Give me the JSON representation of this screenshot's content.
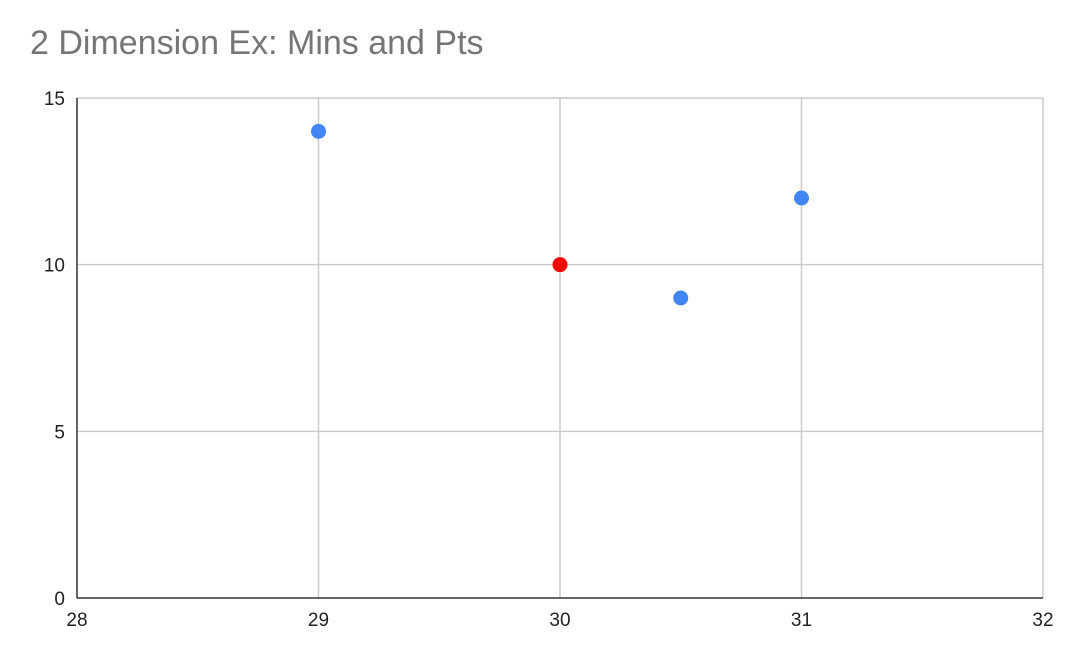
{
  "chart_data": {
    "type": "scatter",
    "title": "2 Dimension Ex: Mins and Pts",
    "xlabel": "",
    "ylabel": "",
    "xlim": [
      28,
      32
    ],
    "ylim": [
      0,
      15
    ],
    "x_ticks": [
      28,
      29,
      30,
      31,
      32
    ],
    "y_ticks": [
      0,
      5,
      10,
      15
    ],
    "grid": true,
    "legend": "none",
    "points": [
      {
        "x": 29,
        "y": 14,
        "color": "#4285F4"
      },
      {
        "x": 30,
        "y": 10,
        "color": "#FF0000"
      },
      {
        "x": 30.5,
        "y": 9,
        "color": "#4285F4"
      },
      {
        "x": 31,
        "y": 12,
        "color": "#4285F4"
      }
    ]
  }
}
